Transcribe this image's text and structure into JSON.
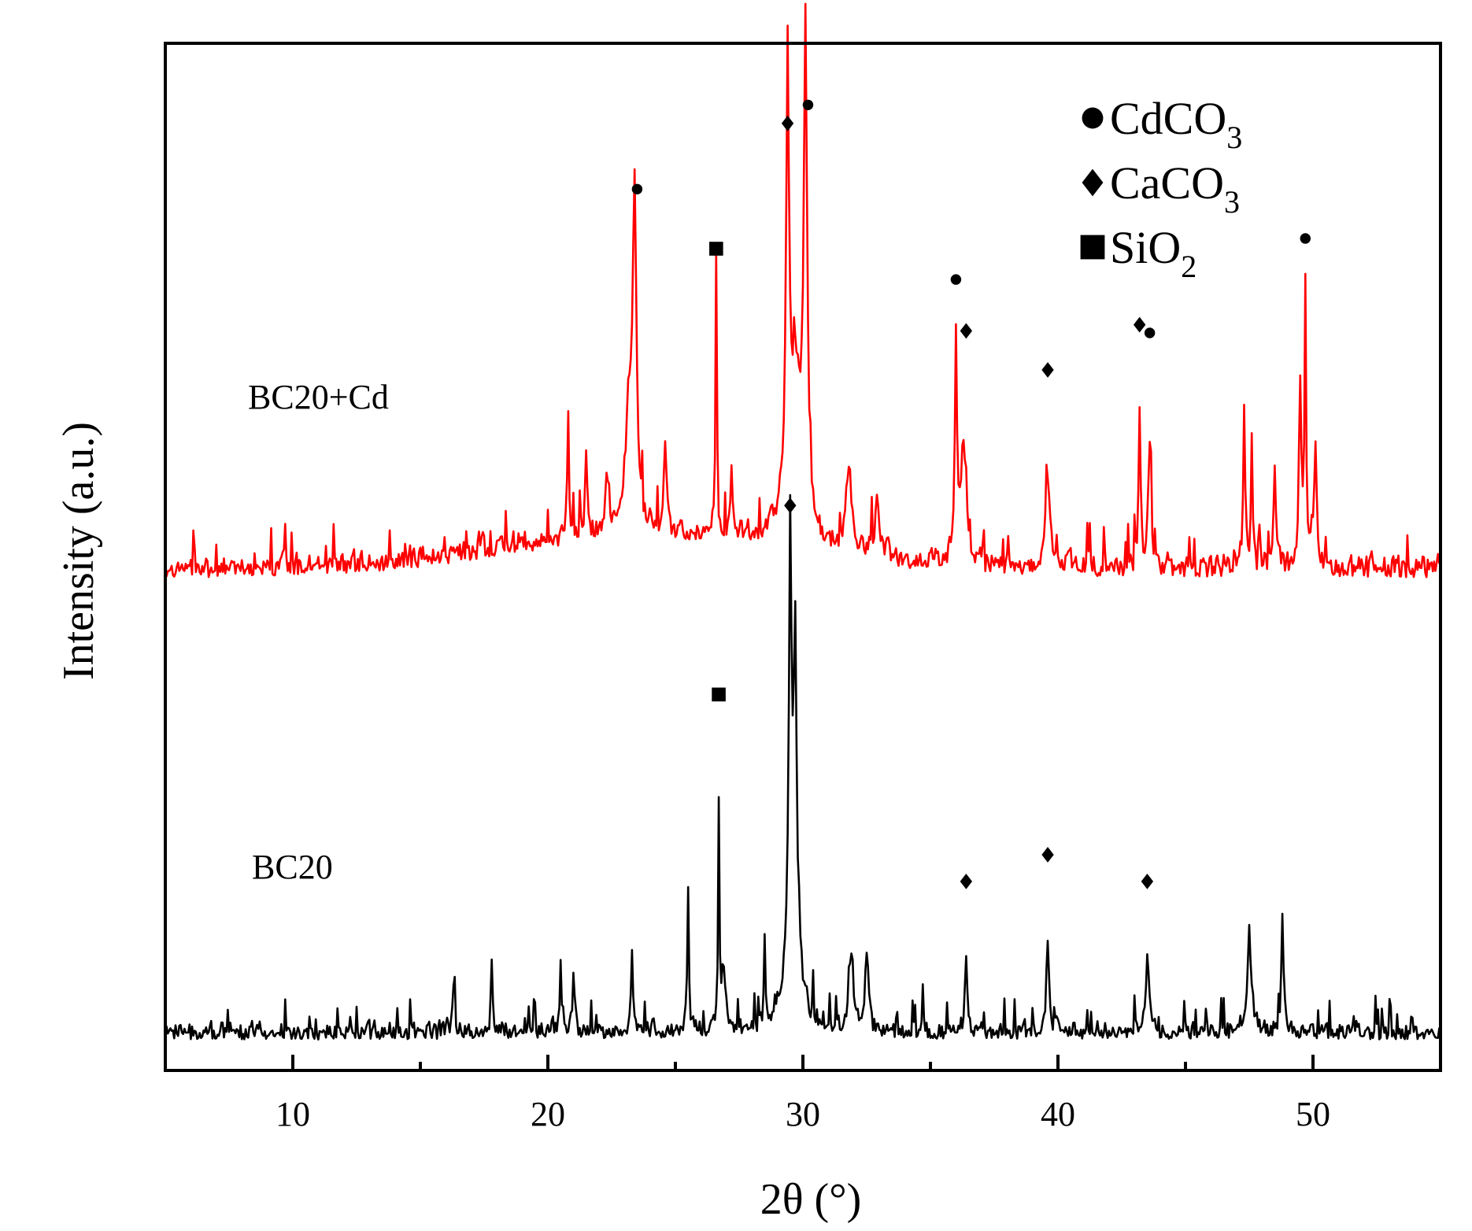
{
  "chart_data": {
    "type": "line",
    "title": "",
    "xlabel": "2θ (°)",
    "ylabel": "Intensity (a.u.)",
    "xlim": [
      5,
      55
    ],
    "x_ticks": [
      10,
      20,
      30,
      40,
      50
    ],
    "x_tick_labels": [
      "10",
      "20",
      "30",
      "40",
      "50"
    ],
    "y_ticks_shown": false,
    "grid": false,
    "legend": {
      "position": "top-right",
      "entries": [
        {
          "marker": "circle",
          "label": "CdCO",
          "subscript": "3"
        },
        {
          "marker": "diamond",
          "label": "CaCO",
          "subscript": "3"
        },
        {
          "marker": "square",
          "label": "SiO",
          "subscript": "2"
        }
      ]
    },
    "series": [
      {
        "name": "BC20+Cd",
        "color": "#ff0000",
        "baseline": 0.48,
        "noise_amplitude": 0.06,
        "peaks": [
          {
            "x": 20.8,
            "h": 0.12,
            "w": 0.06
          },
          {
            "x": 21.5,
            "h": 0.08,
            "w": 0.08
          },
          {
            "x": 22.3,
            "h": 0.06,
            "w": 0.1
          },
          {
            "x": 23.4,
            "h": 0.3,
            "w": 0.12
          },
          {
            "x": 23.2,
            "h": 0.12,
            "w": 0.3
          },
          {
            "x": 24.6,
            "h": 0.07,
            "w": 0.1
          },
          {
            "x": 26.6,
            "h": 0.27,
            "w": 0.05
          },
          {
            "x": 27.2,
            "h": 0.06,
            "w": 0.1
          },
          {
            "x": 29.4,
            "h": 0.42,
            "w": 0.1
          },
          {
            "x": 30.1,
            "h": 0.46,
            "w": 0.12
          },
          {
            "x": 29.7,
            "h": 0.16,
            "w": 0.5
          },
          {
            "x": 31.8,
            "h": 0.08,
            "w": 0.2
          },
          {
            "x": 32.9,
            "h": 0.05,
            "w": 0.15
          },
          {
            "x": 36.0,
            "h": 0.21,
            "w": 0.08
          },
          {
            "x": 36.3,
            "h": 0.12,
            "w": 0.2
          },
          {
            "x": 39.6,
            "h": 0.09,
            "w": 0.18
          },
          {
            "x": 43.2,
            "h": 0.16,
            "w": 0.07
          },
          {
            "x": 43.6,
            "h": 0.12,
            "w": 0.1
          },
          {
            "x": 47.3,
            "h": 0.16,
            "w": 0.07
          },
          {
            "x": 47.6,
            "h": 0.13,
            "w": 0.06
          },
          {
            "x": 48.5,
            "h": 0.09,
            "w": 0.1
          },
          {
            "x": 49.5,
            "h": 0.16,
            "w": 0.1
          },
          {
            "x": 49.7,
            "h": 0.26,
            "w": 0.06
          },
          {
            "x": 50.1,
            "h": 0.12,
            "w": 0.1
          }
        ],
        "markers": [
          {
            "x": 23.5,
            "y": 0.858,
            "shape": "circle"
          },
          {
            "x": 26.6,
            "y": 0.8,
            "shape": "square"
          },
          {
            "x": 29.4,
            "y": 0.922,
            "shape": "diamond"
          },
          {
            "x": 30.2,
            "y": 0.94,
            "shape": "circle"
          },
          {
            "x": 36.0,
            "y": 0.77,
            "shape": "circle"
          },
          {
            "x": 36.4,
            "y": 0.72,
            "shape": "diamond"
          },
          {
            "x": 39.6,
            "y": 0.682,
            "shape": "diamond"
          },
          {
            "x": 43.2,
            "y": 0.726,
            "shape": "diamond"
          },
          {
            "x": 43.6,
            "y": 0.718,
            "shape": "circle"
          },
          {
            "x": 49.7,
            "y": 0.81,
            "shape": "circle"
          }
        ]
      },
      {
        "name": "BC20",
        "color": "#000000",
        "baseline": 0.03,
        "noise_amplitude": 0.05,
        "peaks": [
          {
            "x": 16.3,
            "h": 0.05,
            "w": 0.08
          },
          {
            "x": 17.8,
            "h": 0.06,
            "w": 0.07
          },
          {
            "x": 20.5,
            "h": 0.06,
            "w": 0.08
          },
          {
            "x": 21.0,
            "h": 0.05,
            "w": 0.08
          },
          {
            "x": 23.3,
            "h": 0.08,
            "w": 0.08
          },
          {
            "x": 25.5,
            "h": 0.11,
            "w": 0.07
          },
          {
            "x": 26.7,
            "h": 0.21,
            "w": 0.05
          },
          {
            "x": 26.9,
            "h": 0.06,
            "w": 0.15
          },
          {
            "x": 28.5,
            "h": 0.08,
            "w": 0.06
          },
          {
            "x": 29.5,
            "h": 0.34,
            "w": 0.1
          },
          {
            "x": 29.7,
            "h": 0.26,
            "w": 0.1
          },
          {
            "x": 29.6,
            "h": 0.14,
            "w": 0.4
          },
          {
            "x": 31.9,
            "h": 0.08,
            "w": 0.15
          },
          {
            "x": 32.5,
            "h": 0.08,
            "w": 0.12
          },
          {
            "x": 36.4,
            "h": 0.07,
            "w": 0.1
          },
          {
            "x": 39.6,
            "h": 0.09,
            "w": 0.1
          },
          {
            "x": 43.5,
            "h": 0.07,
            "w": 0.12
          },
          {
            "x": 47.5,
            "h": 0.08,
            "w": 0.18
          },
          {
            "x": 48.8,
            "h": 0.12,
            "w": 0.08
          }
        ],
        "markers": [
          {
            "x": 26.7,
            "y": 0.366,
            "shape": "square"
          },
          {
            "x": 29.5,
            "y": 0.55,
            "shape": "diamond"
          },
          {
            "x": 36.4,
            "y": 0.184,
            "shape": "diamond"
          },
          {
            "x": 39.6,
            "y": 0.21,
            "shape": "diamond"
          },
          {
            "x": 43.5,
            "y": 0.184,
            "shape": "diamond"
          }
        ]
      }
    ]
  },
  "labels": {
    "series_top": "BC20+Cd",
    "series_bottom": "BC20"
  }
}
